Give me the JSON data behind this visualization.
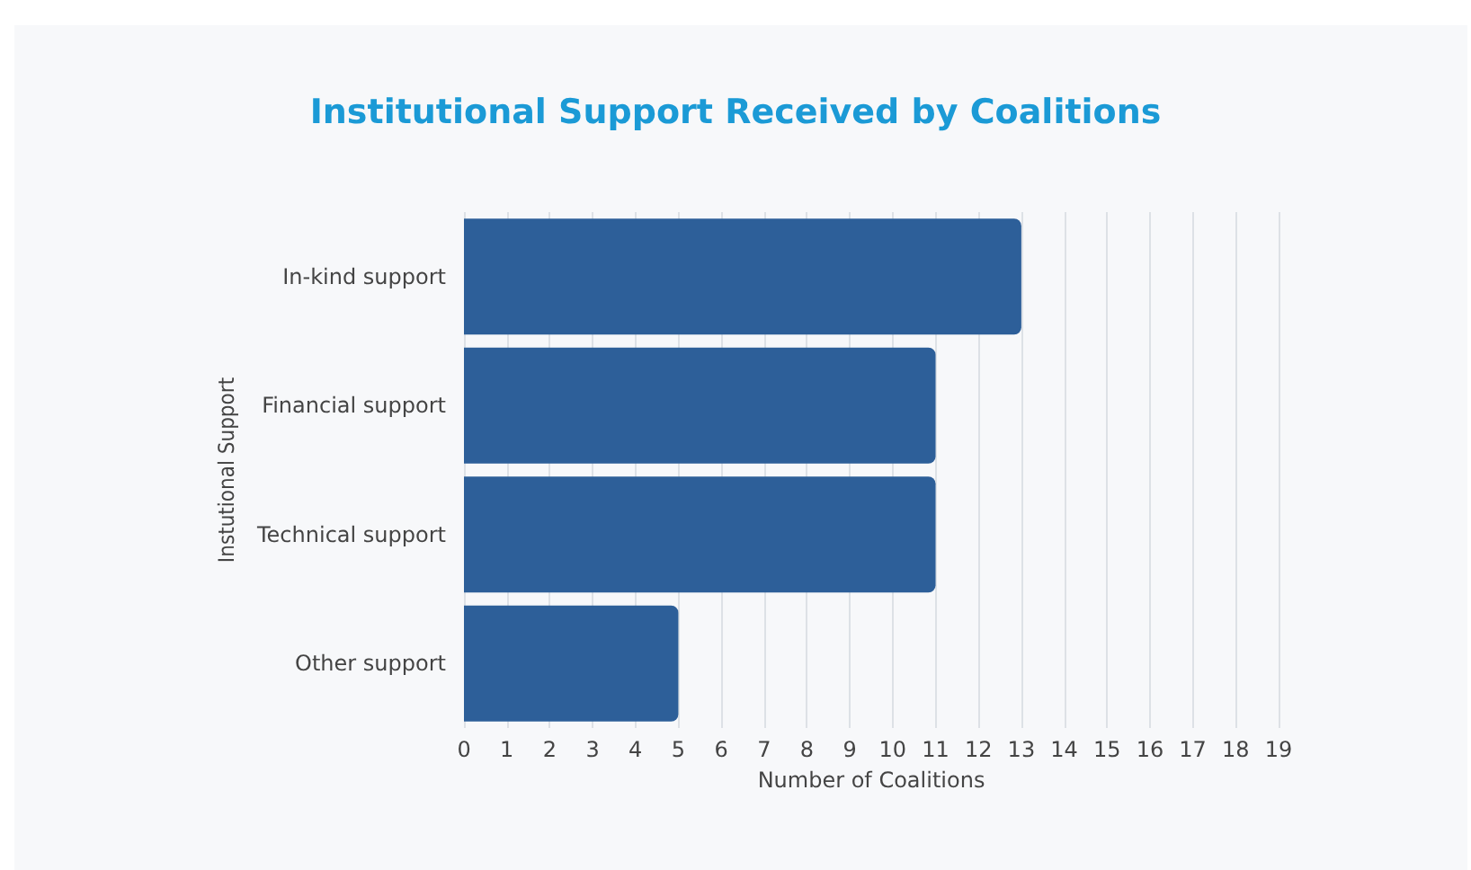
{
  "chart_data": {
    "type": "bar",
    "title": "Institutional Support Received by Coalitions",
    "orientation": "horizontal",
    "categories": [
      "In-kind support",
      "Financial support",
      "Technical support",
      "Other support"
    ],
    "values": [
      13,
      11,
      11,
      5
    ],
    "color": "#2d5f99",
    "xlabel": "Number of Coalitions",
    "ylabel": "Instutional Support",
    "xlim": [
      0,
      19
    ],
    "xticks": [
      0,
      1,
      2,
      3,
      4,
      5,
      6,
      7,
      8,
      9,
      10,
      11,
      12,
      13,
      14,
      15,
      16,
      17,
      18,
      19
    ],
    "grid": "x"
  }
}
